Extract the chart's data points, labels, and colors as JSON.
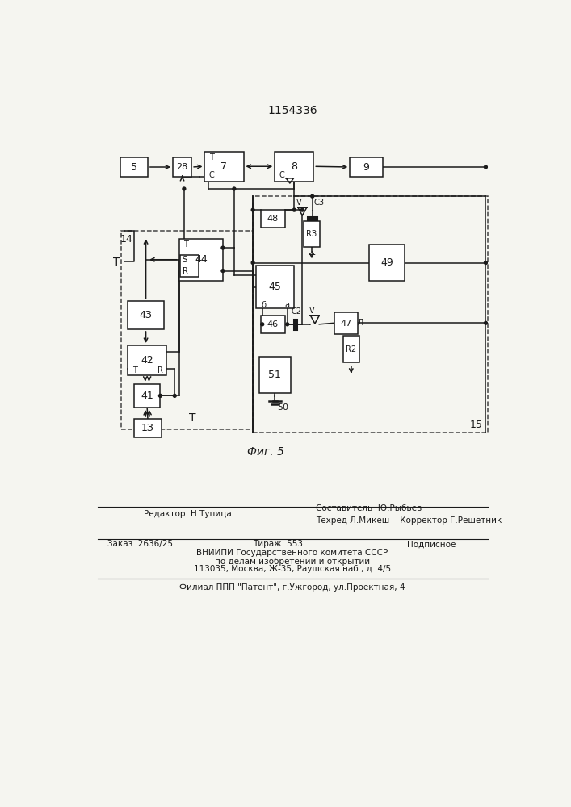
{
  "title": "1154336",
  "fig_label": "Фиг. 5",
  "bg_color": "#f5f5f0",
  "line_color": "#1a1a1a",
  "footer": {
    "line1_left": "Редактор  Н.Тупица",
    "line1_center1": "Составитель  Ю.Рыбьев",
    "line2_center": "Техред Л.Микеш    Корректор Г.Решетник",
    "line3_left": "Заказ  2636/25",
    "line3_center": "Тираж  553",
    "line3_right": "Подписное",
    "line4": "ВНИИПИ Государственного комитета СССР",
    "line5": "по делам изобретений и открытий",
    "line6": "113035, Москва, Ж-35, Раушская наб., д. 4/5",
    "line7": "Филиал ППП \"Патент\", г.Ужгород, ул.Проектная, 4"
  }
}
